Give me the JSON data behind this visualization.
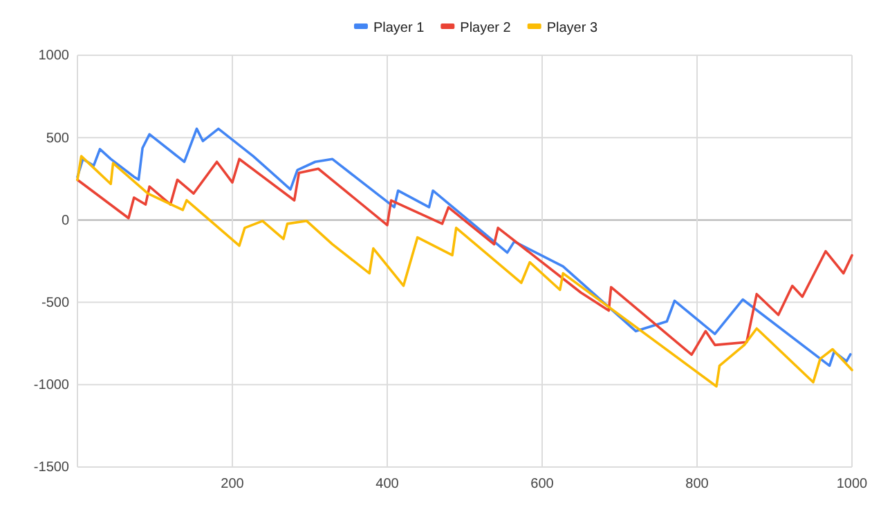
{
  "chart_data": {
    "type": "line",
    "xlim": [
      0,
      1000
    ],
    "xticks": [
      200,
      400,
      600,
      800,
      1000
    ],
    "ylim": [
      -1500,
      1000
    ],
    "yticks": [
      -1500,
      -1000,
      -500,
      0,
      500,
      1000
    ],
    "grid": true,
    "legend": "top",
    "marker": "none",
    "line_style": "solid",
    "series": [
      {
        "name": "Player 1",
        "color": "#4285f4",
        "x": [
          0,
          7,
          21,
          29,
          43,
          73,
          79,
          84,
          93,
          138,
          154,
          162,
          182,
          227,
          275,
          284,
          307,
          329,
          409,
          414,
          454,
          459,
          555,
          564,
          627,
          721,
          761,
          771,
          823,
          859,
          971,
          977,
          993,
          998
        ],
        "values": [
          262,
          370,
          330,
          430,
          370,
          262,
          245,
          437,
          520,
          353,
          554,
          479,
          554,
          387,
          186,
          303,
          353,
          370,
          78,
          178,
          78,
          178,
          -198,
          -131,
          -282,
          -675,
          -616,
          -491,
          -692,
          -483,
          -885,
          -800,
          -858,
          -816
        ]
      },
      {
        "name": "Player 2",
        "color": "#ea4335",
        "x": [
          0,
          66,
          73,
          88,
          93,
          120,
          129,
          150,
          180,
          200,
          209,
          280,
          286,
          311,
          400,
          405,
          471,
          479,
          538,
          543,
          650,
          686,
          689,
          793,
          811,
          823,
          864,
          877,
          905,
          923,
          936,
          966,
          989,
          1000
        ],
        "values": [
          244,
          11,
          136,
          94,
          203,
          94,
          244,
          161,
          353,
          228,
          370,
          119,
          286,
          311,
          -31,
          119,
          -23,
          77,
          -148,
          -48,
          -441,
          -550,
          -408,
          -818,
          -675,
          -759,
          -742,
          -450,
          -576,
          -400,
          -466,
          -190,
          -324,
          -215
        ]
      },
      {
        "name": "Player 3",
        "color": "#fbbc04",
        "x": [
          0,
          5,
          43,
          46,
          91,
          136,
          141,
          209,
          216,
          239,
          266,
          271,
          296,
          329,
          377,
          382,
          421,
          439,
          484,
          489,
          573,
          584,
          623,
          627,
          825,
          829,
          861,
          877,
          950,
          959,
          975,
          1000
        ],
        "values": [
          244,
          387,
          219,
          345,
          161,
          61,
          120,
          -156,
          -48,
          -6,
          -115,
          -23,
          -6,
          -147,
          -324,
          -173,
          -399,
          -106,
          -214,
          -48,
          -382,
          -257,
          -424,
          -324,
          -1010,
          -885,
          -759,
          -659,
          -985,
          -843,
          -785,
          -911
        ]
      }
    ]
  }
}
